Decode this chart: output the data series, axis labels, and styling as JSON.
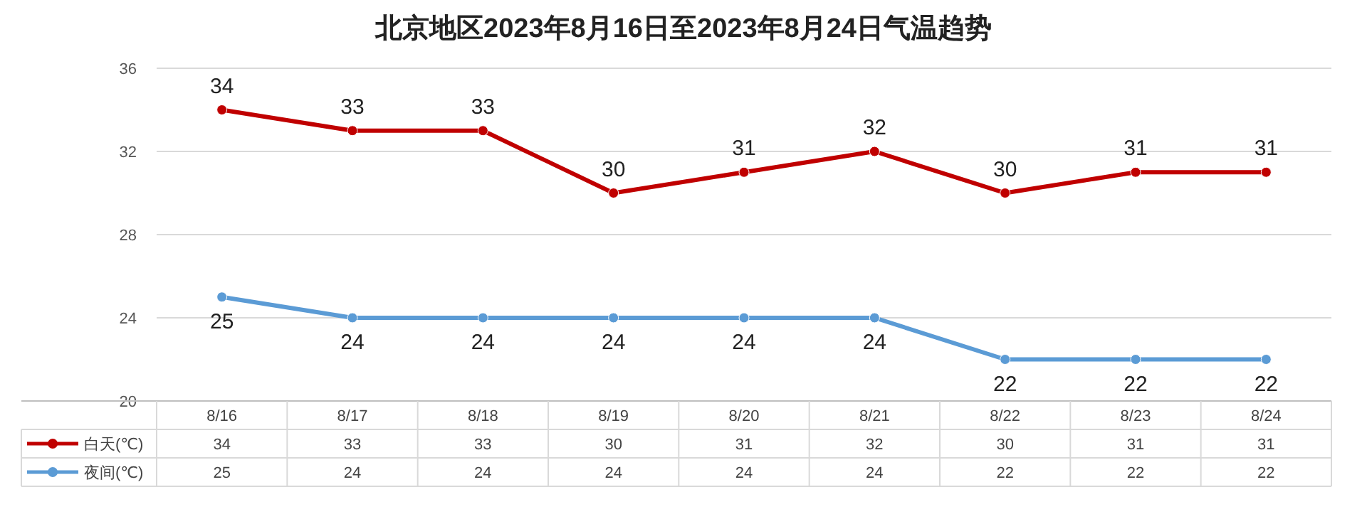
{
  "chart_data": {
    "type": "line",
    "title": "北京地区2023年8月16日至2023年8月24日气温趋势",
    "categories": [
      "8/16",
      "8/17",
      "8/18",
      "8/19",
      "8/20",
      "8/21",
      "8/22",
      "8/23",
      "8/24"
    ],
    "series": [
      {
        "name": "白天(℃)",
        "color": "#c00000",
        "values": [
          34,
          33,
          33,
          30,
          31,
          32,
          30,
          31,
          31
        ],
        "value_labels": [
          "34",
          "33",
          "33",
          "30",
          "31",
          "32",
          "30",
          "31",
          "31"
        ]
      },
      {
        "name": "夜间(℃)",
        "color": "#5b9bd5",
        "values": [
          25,
          24,
          24,
          24,
          24,
          24,
          22,
          22,
          22
        ],
        "value_labels": [
          "25",
          "24",
          "24",
          "24",
          "24",
          "24",
          "22",
          "22",
          "22"
        ]
      }
    ],
    "ylim": [
      20,
      36
    ],
    "yticks": [
      20,
      24,
      28,
      32,
      36
    ],
    "grid": "y",
    "marker": "circle",
    "line_style": "solid",
    "annotations": [
      "34",
      "33",
      "33",
      "30",
      "31",
      "32",
      "30",
      "31",
      "31",
      "25",
      "24",
      "24",
      "24",
      "24",
      "24",
      "22",
      "22",
      "22"
    ],
    "legend": "bottom left"
  }
}
